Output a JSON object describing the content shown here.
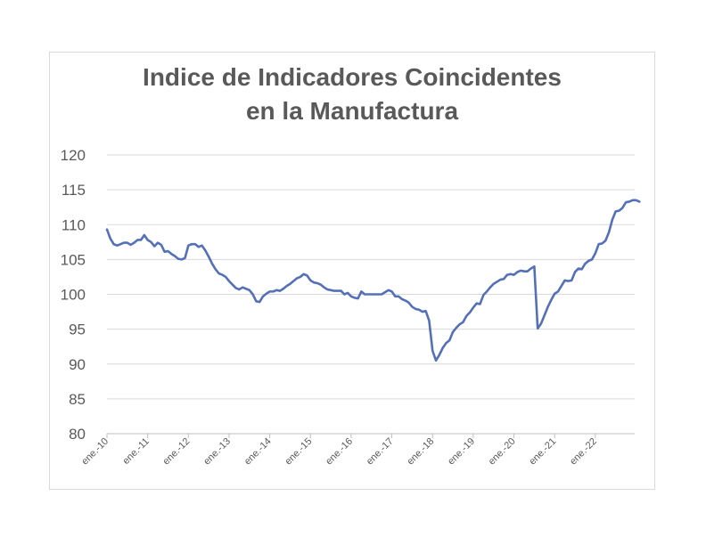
{
  "chart_data": {
    "type": "line",
    "title_lines": [
      "Indice de Indicadores Coincidentes",
      "en la Manufactura"
    ],
    "xlabel": "",
    "ylabel": "",
    "ylim": [
      80,
      120
    ],
    "yticks": [
      80,
      85,
      90,
      95,
      100,
      105,
      110,
      115,
      120
    ],
    "x_tick_labels": [
      "ene.-10",
      "ene.-11",
      "ene.-12",
      "ene.-13",
      "ene.-14",
      "ene.-15",
      "ene.-16",
      "ene.-17",
      "ene.-18",
      "ene.-19",
      "ene.-20",
      "ene.-21",
      "ene.-22"
    ],
    "grid": "horizontal",
    "legend": "none",
    "line_color": "#5470b8",
    "series": [
      {
        "x_start": "ene.-10",
        "frequency": "monthly",
        "values": [
          109.3,
          108.0,
          107.2,
          107.0,
          107.2,
          107.4,
          107.4,
          107.1,
          107.4,
          107.8,
          107.8,
          108.5,
          107.8,
          107.5,
          106.9,
          107.4,
          107.1,
          106.1,
          106.2,
          105.8,
          105.5,
          105.1,
          105.0,
          105.2,
          107.0,
          107.2,
          107.2,
          106.8,
          107.0,
          106.3,
          105.4,
          104.4,
          103.6,
          103.0,
          102.8,
          102.5,
          101.9,
          101.4,
          100.9,
          100.7,
          101.0,
          100.8,
          100.6,
          100.0,
          99.0,
          98.9,
          99.7,
          100.1,
          100.4,
          100.4,
          100.6,
          100.5,
          100.8,
          101.2,
          101.5,
          101.9,
          102.3,
          102.5,
          102.9,
          102.7,
          102.0,
          101.7,
          101.6,
          101.4,
          101.0,
          100.7,
          100.6,
          100.5,
          100.5,
          100.5,
          100.0,
          100.2,
          99.7,
          99.5,
          99.4,
          100.4,
          100.0,
          100.0,
          100.0,
          100.0,
          100.0,
          100.0,
          100.3,
          100.6,
          100.4,
          99.7,
          99.7,
          99.3,
          99.1,
          98.8,
          98.2,
          97.9,
          97.8,
          97.5,
          97.6,
          96.2,
          91.9,
          90.5,
          91.3,
          92.3,
          93.0,
          93.4,
          94.6,
          95.2,
          95.7,
          96.0,
          96.9,
          97.4,
          98.1,
          98.7,
          98.6,
          99.9,
          100.4,
          101.0,
          101.5,
          101.8,
          102.1,
          102.2,
          102.8,
          102.9,
          102.8,
          103.2,
          103.4,
          103.3,
          103.3,
          103.7,
          104.0,
          95.1,
          95.8,
          97.0,
          98.2,
          99.2,
          100.1,
          100.4,
          101.2,
          102.0,
          101.9,
          102.0,
          103.2,
          103.7,
          103.6,
          104.4,
          104.8,
          105.0,
          105.9,
          107.2,
          107.3,
          107.7,
          108.9,
          110.7,
          111.9,
          112.0,
          112.4,
          113.2,
          113.3,
          113.5,
          113.5,
          113.3
        ]
      }
    ]
  }
}
